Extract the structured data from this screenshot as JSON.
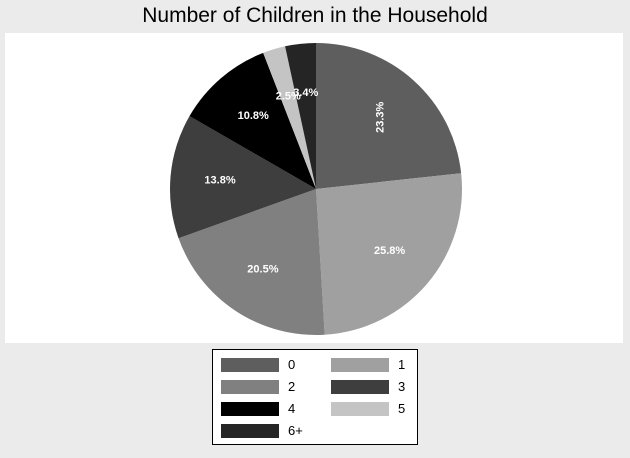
{
  "chart_data": {
    "type": "pie",
    "title": "Number of Children in the Household",
    "categories": [
      "0",
      "1",
      "2",
      "3",
      "4",
      "5",
      "6+"
    ],
    "values": [
      23.3,
      25.8,
      20.5,
      13.8,
      10.8,
      2.5,
      3.4
    ],
    "value_labels": [
      "23.3%",
      "25.8%",
      "20.5%",
      "13.8%",
      "10.8%",
      "2.5%",
      "3.4%"
    ],
    "colors": [
      "#5e5e5e",
      "#a0a0a0",
      "#808080",
      "#3e3e3e",
      "#000000",
      "#c4c4c4",
      "#252525"
    ],
    "start_angle": "12 o'clock",
    "direction": "clockwise",
    "legend_position": "bottom"
  }
}
